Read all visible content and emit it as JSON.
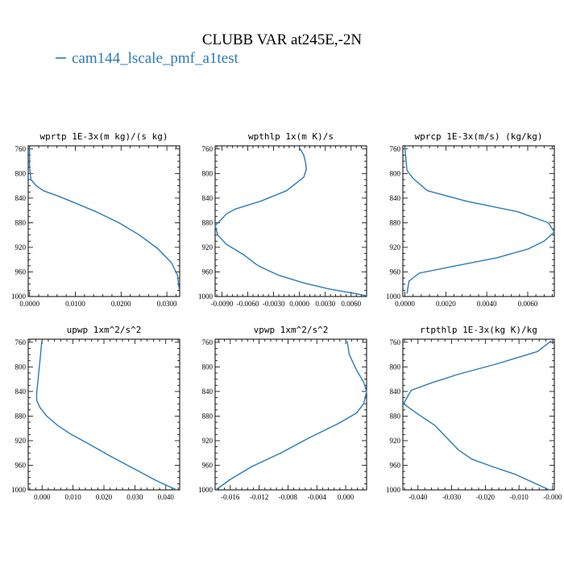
{
  "figure_title": "CLUBB VAR at245E,-2N",
  "legend_label": "cam144_lscale_pmf_a1test",
  "colors": {
    "series": "#2a7ab9",
    "axes": "#000000",
    "background": "#ffffff"
  },
  "chart_data": [
    {
      "type": "line",
      "title": "wprtp  1E-3x(m kg)/(s kg)",
      "xlim": [
        -0.0003,
        0.0328
      ],
      "ylim": [
        1000,
        755
      ],
      "xticks": [
        0.0,
        0.01,
        0.02,
        0.03
      ],
      "xtick_labels": [
        "0.0000",
        "0.0100",
        "0.0200",
        "0.0300"
      ],
      "yticks": [
        760,
        800,
        840,
        880,
        920,
        960,
        1000
      ],
      "ytick_labels": [
        "760",
        "800",
        "840",
        "880",
        "920",
        "960",
        "1000"
      ],
      "series": [
        {
          "x": [
            0.0,
            0.0,
            0.0003,
            0.0015,
            0.003,
            0.006,
            0.009,
            0.0145,
            0.0195,
            0.024,
            0.028,
            0.031,
            0.0323,
            0.0327
          ],
          "y": [
            758,
            790,
            810,
            820,
            828,
            836,
            845,
            862,
            880,
            900,
            922,
            945,
            965,
            988
          ]
        }
      ]
    },
    {
      "type": "line",
      "title": "wpthlp  1x(m K)/s",
      "xlim": [
        -0.0098,
        0.0078
      ],
      "ylim": [
        1000,
        755
      ],
      "xticks": [
        -0.009,
        -0.006,
        -0.003,
        0.0,
        0.003,
        0.006
      ],
      "xtick_labels": [
        "-0.0090",
        "-0.0060",
        "-0.0030",
        "0.0000",
        "0.0030",
        "0.0060"
      ],
      "yticks": [
        760,
        800,
        840,
        880,
        920,
        960,
        1000
      ],
      "ytick_labels": [
        "760",
        "800",
        "840",
        "880",
        "920",
        "960",
        "1000"
      ],
      "series": [
        {
          "x": [
            0.0,
            0.0005,
            0.0007,
            0.0008,
            0.0005,
            -0.0015,
            -0.0045,
            -0.0075,
            -0.0085,
            -0.0098,
            -0.0095,
            -0.0085,
            -0.0065,
            -0.005,
            -0.0045,
            -0.0025,
            0.0005,
            0.0035,
            0.0068,
            0.0078
          ],
          "y": [
            758,
            770,
            782,
            793,
            806,
            828,
            845,
            858,
            866,
            885,
            900,
            915,
            932,
            948,
            952,
            965,
            978,
            988,
            996,
            999
          ]
        }
      ]
    },
    {
      "type": "line",
      "title": "wprcp  1E-3x(m/s) (kg/kg)",
      "xlim": [
        -0.0001,
        0.0073
      ],
      "ylim": [
        1000,
        755
      ],
      "xticks": [
        0.0,
        0.002,
        0.004,
        0.006
      ],
      "xtick_labels": [
        "0.0000",
        "0.0020",
        "0.0040",
        "0.0060"
      ],
      "yticks": [
        760,
        800,
        840,
        880,
        920,
        960,
        1000
      ],
      "ytick_labels": [
        "760",
        "800",
        "840",
        "880",
        "920",
        "960",
        "1000"
      ],
      "series": [
        {
          "x": [
            0.0,
            0.0001,
            0.0004,
            0.0011,
            0.003,
            0.0055,
            0.007,
            0.0073,
            0.0068,
            0.006,
            0.0045,
            0.0025,
            0.0007,
            0.0002,
            0.0001
          ],
          "y": [
            758,
            795,
            808,
            828,
            845,
            862,
            880,
            895,
            910,
            923,
            937,
            950,
            962,
            975,
            995
          ]
        }
      ]
    },
    {
      "type": "line",
      "title": "upwp  1xm^2/s^2",
      "xlim": [
        -0.0045,
        0.0445
      ],
      "ylim": [
        1000,
        755
      ],
      "xticks": [
        0.0,
        0.01,
        0.02,
        0.03,
        0.04
      ],
      "xtick_labels": [
        "0.000",
        "0.010",
        "0.020",
        "0.030",
        "0.040"
      ],
      "yticks": [
        760,
        800,
        840,
        880,
        920,
        960,
        1000
      ],
      "ytick_labels": [
        "760",
        "800",
        "840",
        "880",
        "920",
        "960",
        "1000"
      ],
      "series": [
        {
          "x": [
            -0.0001,
            -0.0007,
            -0.0013,
            -0.0018,
            -0.0017,
            -0.0007,
            0.0015,
            0.005,
            0.0095,
            0.015,
            0.022,
            0.0295,
            0.037,
            0.0435
          ],
          "y": [
            758,
            790,
            820,
            845,
            855,
            866,
            880,
            895,
            910,
            925,
            945,
            965,
            985,
            1000
          ]
        }
      ]
    },
    {
      "type": "line",
      "title": "vpwp  1xm^2/s^2",
      "xlim": [
        -0.0181,
        0.0029
      ],
      "ylim": [
        1000,
        755
      ],
      "xticks": [
        -0.016,
        -0.012,
        -0.008,
        -0.004,
        0.0
      ],
      "xtick_labels": [
        "-0.016",
        "-0.012",
        "-0.008",
        "-0.004",
        "0.000"
      ],
      "yticks": [
        760,
        800,
        840,
        880,
        920,
        960,
        1000
      ],
      "ytick_labels": [
        "760",
        "800",
        "840",
        "880",
        "920",
        "960",
        "1000"
      ],
      "series": [
        {
          "x": [
            0.0002,
            0.0005,
            0.0015,
            0.0025,
            0.0029,
            0.0025,
            0.0015,
            -0.001,
            -0.005,
            -0.009,
            -0.013,
            -0.016,
            -0.018
          ],
          "y": [
            758,
            780,
            805,
            825,
            840,
            860,
            875,
            892,
            915,
            940,
            962,
            983,
            1000
          ]
        }
      ]
    },
    {
      "type": "line",
      "title": "rtpthlp  1E-3x(kg K)/kg",
      "xlim": [
        -0.0445,
        0.0005
      ],
      "ylim": [
        1000,
        755
      ],
      "xticks": [
        -0.04,
        -0.03,
        -0.02,
        -0.01,
        0.0
      ],
      "xtick_labels": [
        "-0.040",
        "-0.030",
        "-0.020",
        "-0.010",
        "-0.000"
      ],
      "yticks": [
        760,
        800,
        840,
        880,
        920,
        960,
        1000
      ],
      "ytick_labels": [
        "760",
        "800",
        "840",
        "880",
        "920",
        "960",
        "1000"
      ],
      "series": [
        {
          "x": [
            -0.0005,
            -0.0045,
            -0.0165,
            -0.028,
            -0.036,
            -0.042,
            -0.0443,
            -0.0405,
            -0.035,
            -0.0315,
            -0.028,
            -0.024,
            -0.018,
            -0.011,
            -0.005,
            -0.001
          ],
          "y": [
            758,
            775,
            795,
            812,
            826,
            838,
            860,
            875,
            895,
            915,
            935,
            950,
            962,
            975,
            990,
            1000
          ]
        }
      ]
    }
  ]
}
